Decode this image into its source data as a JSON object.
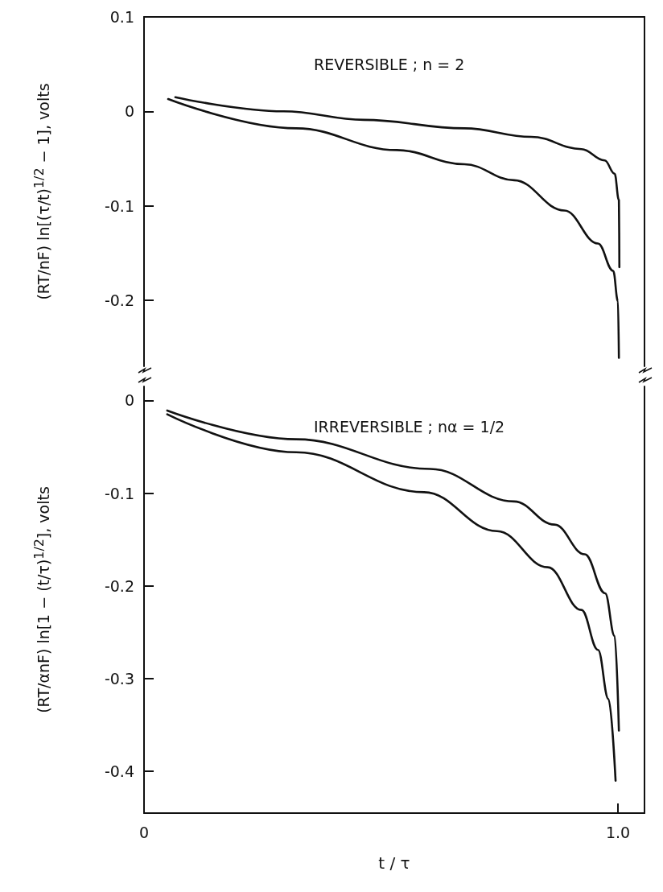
{
  "chart_data": [
    {
      "type": "line",
      "annotations": [
        "REVERSIBLE ; n = 2"
      ],
      "ylabel": "(RT/nF) ln[(τ/t)$^{1/2}$ − 1], volts",
      "xlim": [
        0,
        1.056
      ],
      "ylim": [
        -0.27,
        0.1
      ],
      "yticks": [
        0.1,
        0,
        -0.1,
        -0.2
      ],
      "tick_labels": "y",
      "marker": "none",
      "line_style": "solid",
      "grid": false,
      "series": [
        {
          "color": "#111111",
          "x": [
            0.066,
            0.294,
            0.464,
            0.676,
            0.817,
            0.923,
            0.972,
            0.993,
            1.002,
            1.003
          ],
          "values": [
            0.015,
            0,
            -0.009,
            -0.018,
            -0.027,
            -0.04,
            -0.052,
            -0.066,
            -0.094,
            -0.165
          ]
        },
        {
          "color": "#111111",
          "x": [
            0.051,
            0.321,
            0.533,
            0.676,
            0.781,
            0.887,
            0.958,
            0.99,
            1.0,
            1.002
          ],
          "values": [
            0.013,
            -0.018,
            -0.041,
            -0.056,
            -0.073,
            -0.105,
            -0.14,
            -0.169,
            -0.201,
            -0.261
          ]
        }
      ]
    },
    {
      "type": "line",
      "annotations": [
        "IRREVERSIBLE ; nα = 1/2"
      ],
      "xlabel": "t / τ",
      "ylabel": "(RT/αnF) ln[1 − (t/τ)$^{1/2}$], volts",
      "xlim": [
        0,
        1.056
      ],
      "ylim": [
        -0.445,
        0.015
      ],
      "xticks": [
        0,
        {
          "value": 1,
          "label": "1.0"
        }
      ],
      "yticks": [
        0,
        -0.1,
        -0.2,
        -0.3,
        -0.4
      ],
      "marker": "none",
      "line_style": "solid",
      "grid": false,
      "series": [
        {
          "color": "#111111",
          "x": [
            0.049,
            0.321,
            0.604,
            0.781,
            0.866,
            0.93,
            0.973,
            0.993,
            1.002
          ],
          "values": [
            -0.011,
            -0.042,
            -0.074,
            -0.109,
            -0.134,
            -0.166,
            -0.208,
            -0.254,
            -0.356
          ]
        },
        {
          "color": "#111111",
          "x": [
            0.049,
            0.321,
            0.591,
            0.745,
            0.852,
            0.923,
            0.958,
            0.98,
            0.995
          ],
          "values": [
            -0.015,
            -0.056,
            -0.099,
            -0.141,
            -0.18,
            -0.226,
            -0.269,
            -0.322,
            -0.41
          ]
        }
      ]
    }
  ]
}
